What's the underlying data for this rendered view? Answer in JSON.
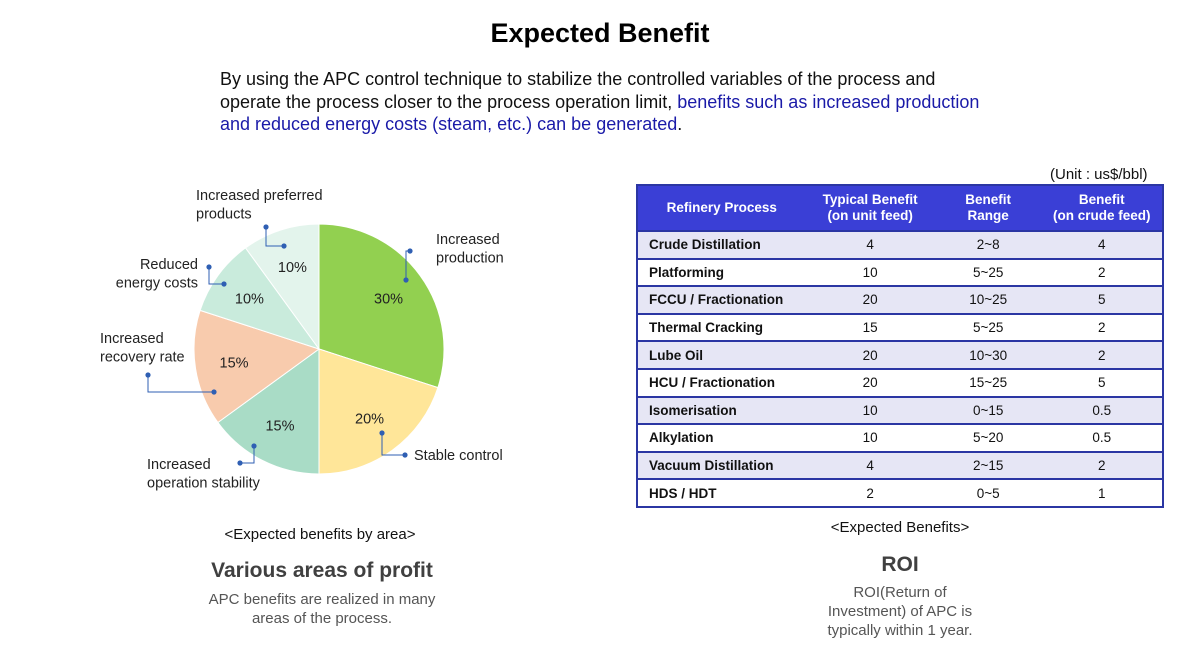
{
  "page": {
    "title": "Expected Benefit",
    "intro_plain": "By using the APC control technique to stabilize the controlled variables of the process and operate the process closer to the process operation limit, ",
    "intro_highlight": "benefits such as increased production and reduced energy costs (steam, etc.) can be generated",
    "intro_end": "."
  },
  "chart_data": {
    "type": "pie",
    "title": "",
    "caption": "<Expected benefits by area>",
    "slices": [
      {
        "label": "Increased production",
        "value": 30,
        "value_label": "30%",
        "color": "#92d050"
      },
      {
        "label": "Stable control",
        "value": 20,
        "value_label": "20%",
        "color": "#ffe699"
      },
      {
        "label": "Increased operation stability",
        "value": 15,
        "value_label": "15%",
        "color": "#a9dcc6"
      },
      {
        "label": "Increased recovery rate",
        "value": 15,
        "value_label": "15%",
        "color": "#f8cbad"
      },
      {
        "label": "Reduced energy costs",
        "value": 10,
        "value_label": "10%",
        "color": "#c9ebdc"
      },
      {
        "label": "Increased preferred products",
        "value": 10,
        "value_label": "10%",
        "color": "#e3f4ec"
      }
    ],
    "callouts": {
      "production": [
        "Increased",
        "production"
      ],
      "stable": [
        "Stable control"
      ],
      "operation": [
        "Increased",
        "operation stability"
      ],
      "recovery": [
        "Increased",
        "recovery rate"
      ],
      "energy": [
        "Reduced",
        "energy costs"
      ],
      "preferred": [
        "Increased preferred",
        "products"
      ]
    },
    "leader_color": "#2f5fb3"
  },
  "left_panel": {
    "heading": "Various areas of profit",
    "text_line1": "APC benefits are realized in many",
    "text_line2": "areas of the process."
  },
  "table": {
    "unit": "(Unit : us$/bbl)",
    "headers": [
      [
        "Refinery Process"
      ],
      [
        "Typical Benefit",
        "(on unit feed)"
      ],
      [
        "Benefit",
        "Range"
      ],
      [
        "Benefit",
        "(on crude feed)"
      ]
    ],
    "rows": [
      [
        "Crude Distillation",
        "4",
        "2~8",
        "4"
      ],
      [
        "Platforming",
        "10",
        "5~25",
        "2"
      ],
      [
        "FCCU / Fractionation",
        "20",
        "10~25",
        "5"
      ],
      [
        "Thermal Cracking",
        "15",
        "5~25",
        "2"
      ],
      [
        "Lube Oil",
        "20",
        "10~30",
        "2"
      ],
      [
        "HCU / Fractionation",
        "20",
        "15~25",
        "5"
      ],
      [
        "Isomerisation",
        "10",
        "0~15",
        "0.5"
      ],
      [
        "Alkylation",
        "10",
        "5~20",
        "0.5"
      ],
      [
        "Vacuum Distillation",
        "4",
        "2~15",
        "2"
      ],
      [
        "HDS / HDT",
        "2",
        "0~5",
        "1"
      ]
    ],
    "caption": "<Expected Benefits>",
    "header_bg": "#3a3fd6",
    "border_color": "#2b36a3",
    "alt_row_bg": "#e6e6f5"
  },
  "right_panel": {
    "heading": "ROI",
    "text_line1": "ROI(Return of",
    "text_line2": "Investment) of APC is",
    "text_line3": "typically within 1 year."
  }
}
